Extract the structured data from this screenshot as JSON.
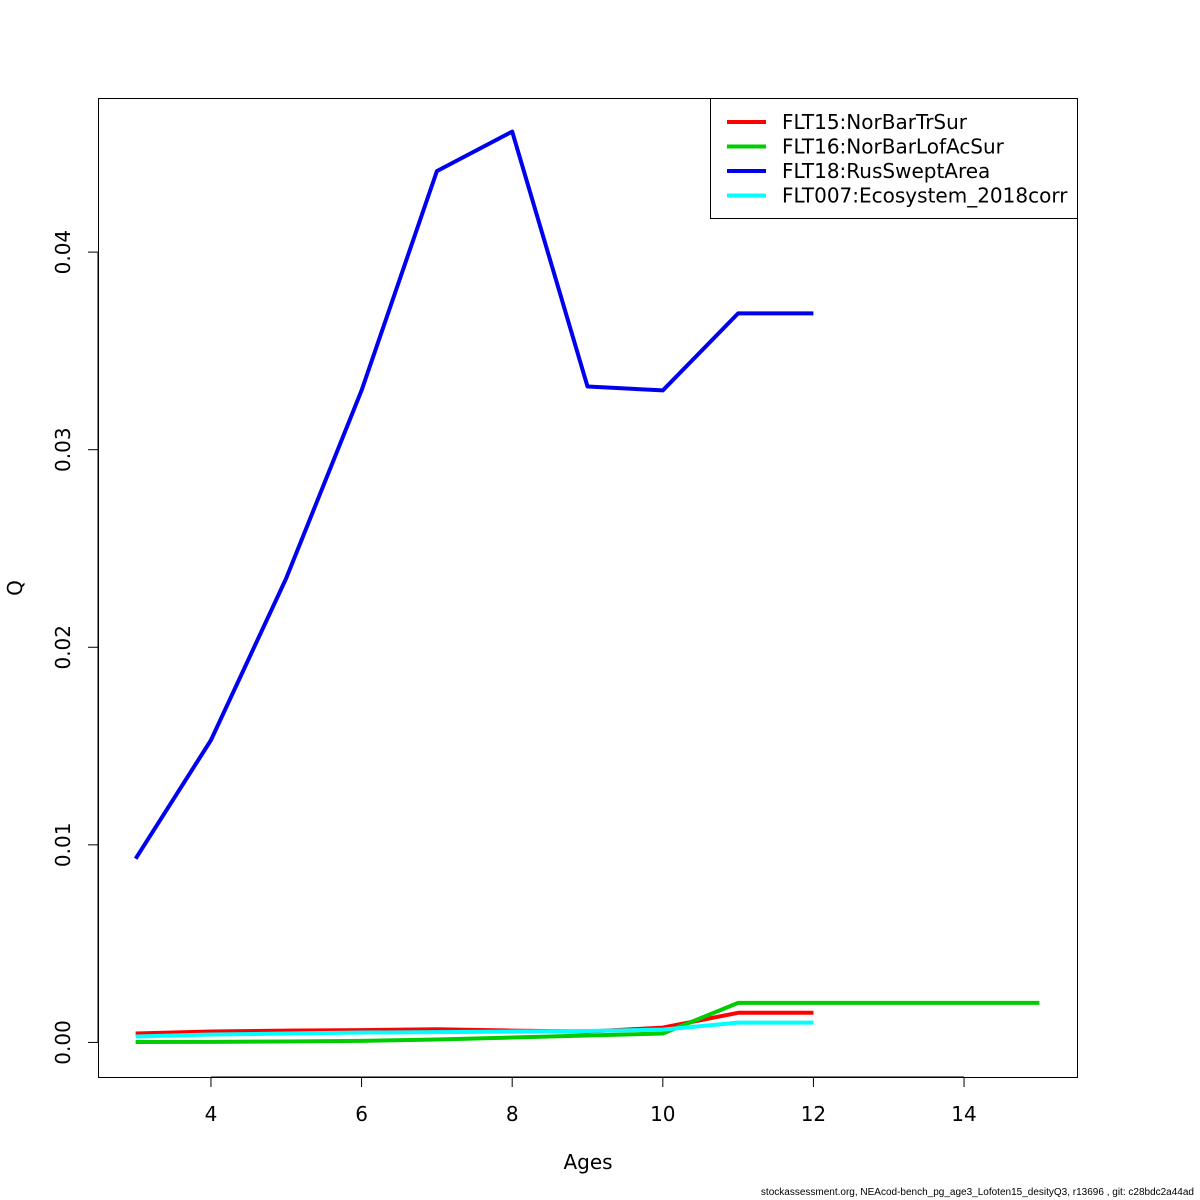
{
  "chart_data": {
    "type": "line",
    "title": "",
    "xlabel": "Ages",
    "ylabel": "Q",
    "xlim": [
      2.5,
      15.5
    ],
    "ylim": [
      -0.00175,
      0.0478
    ],
    "xticks": [
      4,
      6,
      8,
      10,
      12,
      14
    ],
    "yticks": [
      0.0,
      0.01,
      0.02,
      0.03,
      0.04
    ],
    "xtick_labels": [
      "4",
      "6",
      "8",
      "10",
      "12",
      "14"
    ],
    "ytick_labels": [
      "0.00",
      "0.01",
      "0.02",
      "0.03",
      "0.04"
    ],
    "grid": false,
    "legend_position": "top-right",
    "series": [
      {
        "name": "FLT15:NorBarTrSur",
        "color": "#ff0000",
        "x": [
          3,
          4,
          5,
          6,
          7,
          8,
          9,
          10,
          11,
          12
        ],
        "y": [
          0.00045,
          0.00055,
          0.0006,
          0.00062,
          0.00067,
          0.0006,
          0.00055,
          0.00075,
          0.0015,
          0.0015
        ]
      },
      {
        "name": "FLT16:NorBarLofAcSur",
        "color": "#00cd00",
        "x": [
          3,
          4,
          5,
          6,
          7,
          8,
          9,
          10,
          11,
          12,
          13,
          14,
          15
        ],
        "y": [
          2e-05,
          3e-05,
          5e-05,
          8e-05,
          0.00015,
          0.00025,
          0.00035,
          0.00045,
          0.002,
          0.002,
          0.002,
          0.002,
          0.002
        ]
      },
      {
        "name": "FLT18:RusSweptArea",
        "color": "#0000ee",
        "x": [
          3,
          4,
          5,
          6,
          7,
          8,
          9,
          10,
          11,
          12
        ],
        "y": [
          0.0093,
          0.0153,
          0.0235,
          0.033,
          0.0441,
          0.0461,
          0.0332,
          0.033,
          0.0369,
          0.0369
        ]
      },
      {
        "name": "FLT007:Ecosystem_2018corr",
        "color": "#00ffff",
        "x": [
          3,
          4,
          5,
          6,
          7,
          8,
          9,
          10,
          11,
          12
        ],
        "y": [
          0.0003,
          0.0004,
          0.00045,
          0.0005,
          0.00052,
          0.00055,
          0.00058,
          0.00065,
          0.001,
          0.001
        ]
      }
    ]
  },
  "footer": {
    "text": "stockassessment.org, NEAcod-bench_pg_age3_Lofoten15_desityQ3, r13696 , git: c28bdc2a44ad"
  }
}
